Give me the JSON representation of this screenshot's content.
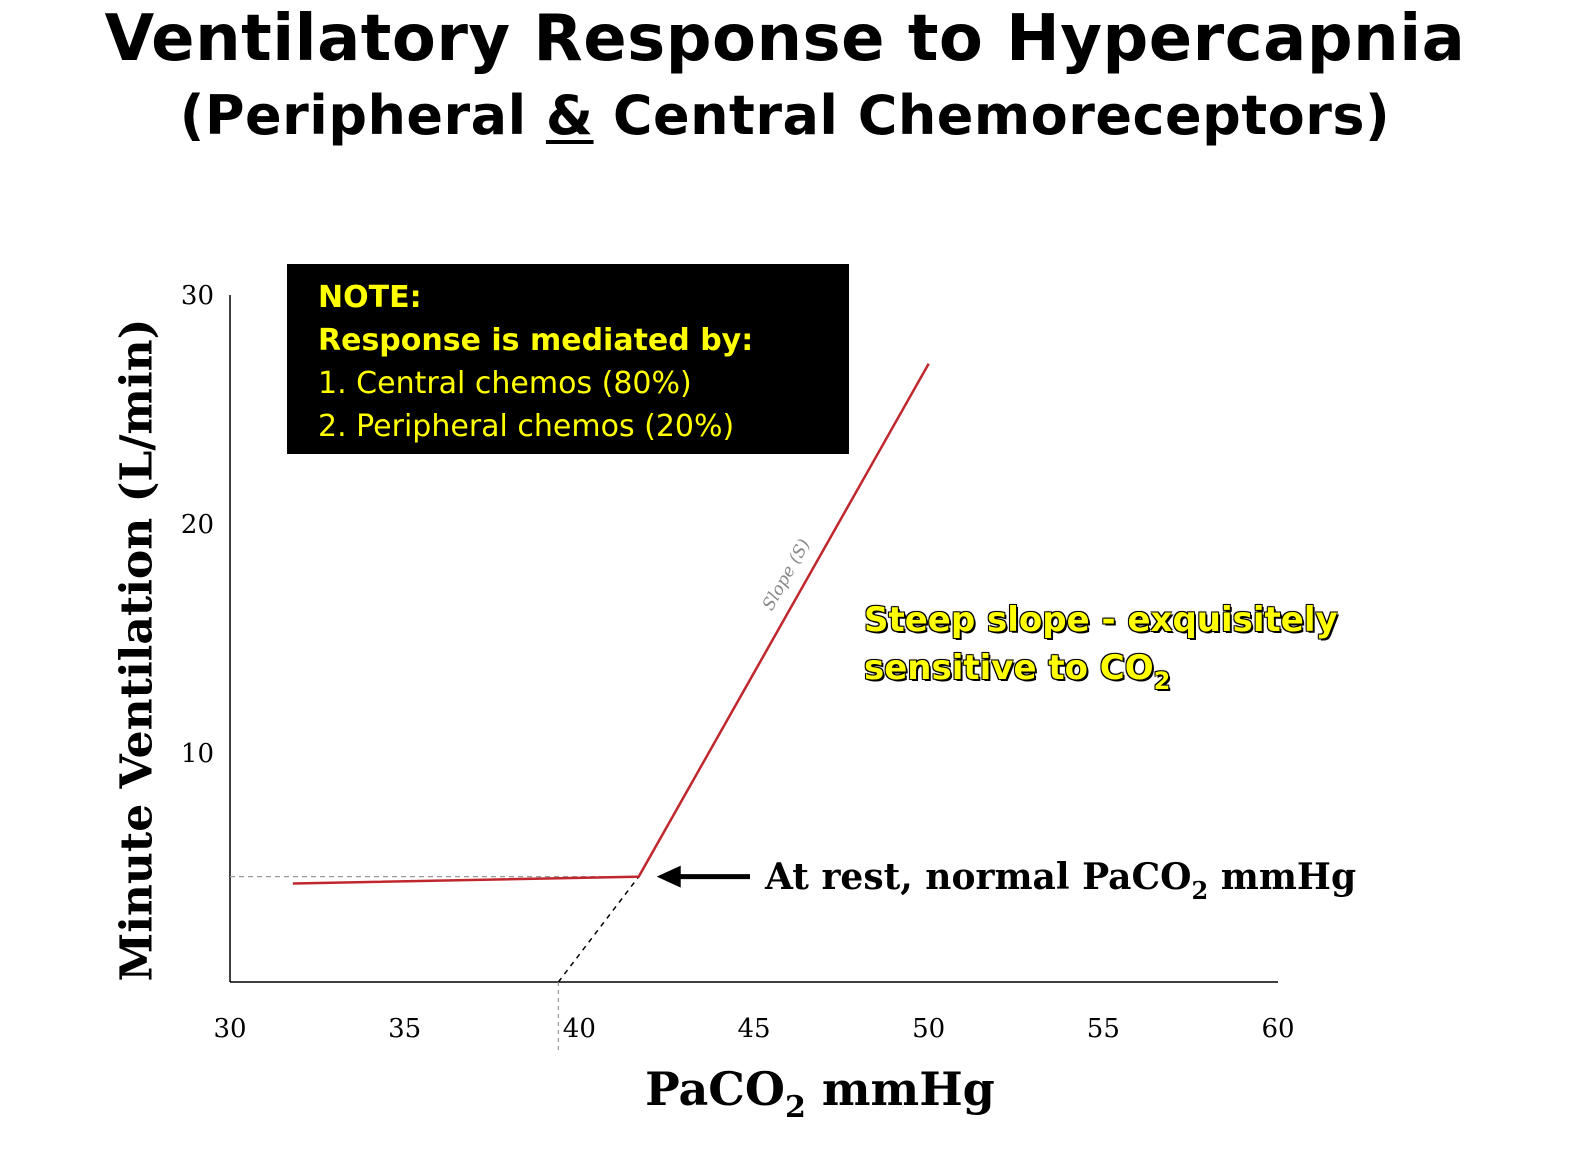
{
  "title": {
    "line1": "Ventilatory Response to Hypercapnia",
    "line2_open": "(Peripheral ",
    "line2_amp": "&",
    "line2_close": " Central Chemoreceptors)"
  },
  "note": {
    "heading": "NOTE:",
    "subheading": "Response is mediated by:",
    "item1": "1. Central chemos (80%)",
    "item2": "2. Peripheral chemos (20%)",
    "bg_color": "#000000",
    "text_color": "#ffff00"
  },
  "callout": {
    "line1": "Steep slope - exquisitely",
    "line2_main": "sensitive to CO",
    "line2_sub": "2",
    "color": "#ffff00"
  },
  "rest_annotation": {
    "main": "At rest, normal PaCO",
    "sub": "2",
    "suffix": " mmHg"
  },
  "chart_data": {
    "type": "line",
    "xlabel_main": "PaCO",
    "xlabel_sub": "2",
    "xlabel_suffix": " mmHg",
    "ylabel": "Minute Ventilation (L/min)",
    "xlim": [
      30,
      60
    ],
    "ylim": [
      0,
      30
    ],
    "x_ticks": [
      30,
      35,
      40,
      45,
      50,
      55,
      60
    ],
    "y_ticks": [
      10,
      20,
      30
    ],
    "slope_label": "Slope (S)",
    "series": [
      {
        "color": "#c0272d",
        "points": [
          [
            31.8,
            4.3
          ],
          [
            41.7,
            4.6
          ],
          [
            50.0,
            27.0
          ]
        ]
      }
    ],
    "reference_lines": {
      "rest_point": [
        41.7,
        4.6
      ],
      "extrapolation_to": [
        39.4,
        0.0
      ],
      "color": "#999999"
    },
    "grid": false
  }
}
